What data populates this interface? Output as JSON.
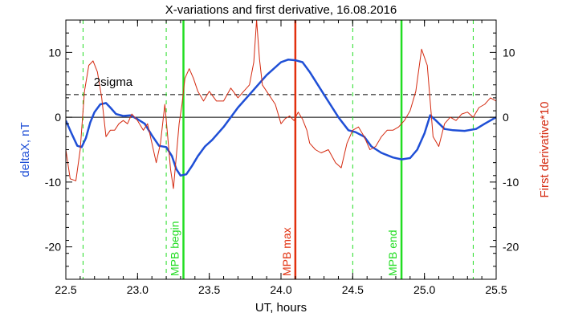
{
  "chart_data": {
    "type": "line",
    "title": "X-variations and first derivative, 16.08.2016",
    "xlabel": "UT, hours",
    "ylabel_left": "deltaX, nT",
    "ylabel_right": "First derivative*10",
    "xlim": [
      22.5,
      25.5
    ],
    "ylim": [
      -25,
      15
    ],
    "x_ticks": [
      22.5,
      23.0,
      23.5,
      24.0,
      24.5,
      25.0,
      25.5
    ],
    "x_tick_labels": [
      "22.5",
      "23.0",
      "23.5",
      "24.0",
      "24.5",
      "25.0",
      "25.5"
    ],
    "y_ticks": [
      -20,
      -10,
      0,
      10
    ],
    "y_tick_labels": [
      "-20",
      "-10",
      "0",
      "10"
    ],
    "colors": {
      "deltaX": "#1f4fd6",
      "derivative": "#d42a10",
      "boundary": "#22dd22",
      "max": "#e2300e",
      "sigma": "#000000",
      "zero": "#000000"
    },
    "sigma_line": {
      "value": 3.5,
      "label": "2sigma",
      "label_x": 22.65
    },
    "zero_line": 0,
    "vertical_lines": [
      {
        "x": 23.32,
        "label": "MPB begin",
        "style": "solid",
        "color_key": "boundary"
      },
      {
        "x": 24.1,
        "label": "MPB max",
        "style": "solid",
        "color_key": "max"
      },
      {
        "x": 24.84,
        "label": "MPB end",
        "style": "solid",
        "color_key": "boundary"
      },
      {
        "x": 22.62,
        "label": "",
        "style": "dashed",
        "color_key": "boundary"
      },
      {
        "x": 23.2,
        "label": "",
        "style": "dashed",
        "color_key": "boundary"
      },
      {
        "x": 24.5,
        "label": "",
        "style": "dashed",
        "color_key": "boundary"
      },
      {
        "x": 25.34,
        "label": "",
        "style": "dashed",
        "color_key": "boundary"
      }
    ],
    "series": [
      {
        "key": "deltaX",
        "x": [
          22.5,
          22.54,
          22.58,
          22.61,
          22.64,
          22.67,
          22.7,
          22.74,
          22.78,
          22.81,
          22.85,
          22.9,
          22.95,
          23.0,
          23.05,
          23.1,
          23.15,
          23.2,
          23.24,
          23.27,
          23.3,
          23.34,
          23.38,
          23.42,
          23.47,
          23.52,
          23.6,
          23.7,
          23.8,
          23.9,
          24.0,
          24.05,
          24.1,
          24.15,
          24.2,
          24.3,
          24.4,
          24.47,
          24.52,
          24.58,
          24.63,
          24.7,
          24.78,
          24.84,
          24.9,
          24.95,
          25.0,
          25.04,
          25.08,
          25.14,
          25.2,
          25.28,
          25.36,
          25.42,
          25.5
        ],
        "y": [
          -0.5,
          -2.5,
          -4.4,
          -4.6,
          -3.2,
          -0.8,
          0.8,
          2.0,
          2.2,
          1.5,
          0.5,
          0.2,
          0.3,
          -0.3,
          -1.0,
          -2.8,
          -4.4,
          -4.6,
          -6.0,
          -8.0,
          -9.0,
          -8.8,
          -7.5,
          -6.0,
          -4.5,
          -3.5,
          -1.5,
          1.5,
          4.0,
          6.5,
          8.5,
          8.9,
          8.8,
          8.5,
          7.0,
          3.5,
          0.0,
          -2.0,
          -2.3,
          -3.0,
          -4.5,
          -5.5,
          -6.2,
          -6.5,
          -6.3,
          -5.0,
          -2.5,
          0.3,
          -0.5,
          -1.8,
          -2.0,
          -2.1,
          -1.8,
          -1.0,
          0.0
        ]
      },
      {
        "key": "derivative",
        "x": [
          22.5,
          22.53,
          22.57,
          22.6,
          22.63,
          22.66,
          22.69,
          22.72,
          22.75,
          22.78,
          22.81,
          22.84,
          22.87,
          22.9,
          22.93,
          22.96,
          23.0,
          23.04,
          23.07,
          23.1,
          23.13,
          23.16,
          23.19,
          23.21,
          23.23,
          23.25,
          23.27,
          23.29,
          23.31,
          23.33,
          23.36,
          23.39,
          23.42,
          23.46,
          23.5,
          23.55,
          23.6,
          23.65,
          23.7,
          23.74,
          23.78,
          23.81,
          23.83,
          23.85,
          23.87,
          23.9,
          23.93,
          23.96,
          24.0,
          24.03,
          24.06,
          24.09,
          24.12,
          24.15,
          24.18,
          24.2,
          24.24,
          24.28,
          24.33,
          24.38,
          24.42,
          24.46,
          24.5,
          24.54,
          24.58,
          24.62,
          24.66,
          24.7,
          24.74,
          24.78,
          24.82,
          24.86,
          24.9,
          24.94,
          24.98,
          25.02,
          25.06,
          25.1,
          25.14,
          25.18,
          25.22,
          25.26,
          25.3,
          25.34,
          25.38,
          25.42,
          25.46,
          25.5
        ],
        "y": [
          -5.0,
          -9.5,
          -9.8,
          -5.0,
          4.0,
          8.0,
          8.7,
          7.0,
          3.0,
          -3.0,
          -2.0,
          -2.0,
          -1.0,
          -0.5,
          -1.0,
          0.5,
          -0.5,
          -2.0,
          -1.0,
          -4.0,
          -7.0,
          -4.0,
          2.0,
          -3.0,
          -8.0,
          -11.0,
          -6.0,
          -1.0,
          2.0,
          6.0,
          7.5,
          6.0,
          4.0,
          2.5,
          4.0,
          2.5,
          2.5,
          4.5,
          3.0,
          4.0,
          5.0,
          8.5,
          15.0,
          9.0,
          5.0,
          4.0,
          3.0,
          2.0,
          -1.0,
          -0.2,
          0.2,
          -0.5,
          0.8,
          -0.3,
          -2.0,
          -4.0,
          -5.0,
          -5.5,
          -5.0,
          -7.0,
          -7.8,
          -4.0,
          -2.0,
          -1.5,
          -3.0,
          -5.0,
          -4.5,
          -3.0,
          -2.0,
          -2.0,
          -1.5,
          -0.5,
          1.0,
          4.0,
          10.5,
          8.0,
          -3.0,
          -4.5,
          -1.0,
          0.0,
          -0.5,
          0.5,
          0.8,
          0.0,
          1.5,
          2.0,
          3.0,
          2.5
        ]
      }
    ]
  }
}
